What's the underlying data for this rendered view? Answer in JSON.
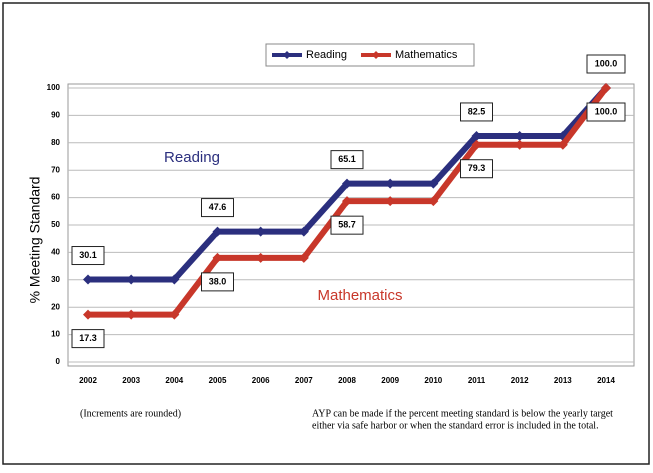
{
  "chart_data": {
    "type": "line",
    "y_label": "% Meeting Standard",
    "categories": [
      "2002",
      "2003",
      "2004",
      "2005",
      "2006",
      "2007",
      "2008",
      "2009",
      "2010",
      "2011",
      "2012",
      "2013",
      "2014"
    ],
    "series": [
      {
        "name": "Reading",
        "color": "#2b2f7e",
        "values": [
          30.1,
          30.1,
          30.1,
          47.6,
          47.6,
          47.6,
          65.1,
          65.1,
          65.1,
          82.5,
          82.5,
          82.5,
          100
        ],
        "value_labels": [
          "30.1",
          null,
          null,
          "47.6",
          null,
          null,
          "65.1",
          null,
          null,
          "82.5",
          null,
          null,
          "100.0"
        ]
      },
      {
        "name": "Mathematics",
        "color": "#c8372a",
        "values": [
          17.3,
          17.3,
          17.3,
          38,
          38,
          38,
          58.7,
          58.7,
          58.7,
          79.3,
          79.3,
          79.3,
          100
        ],
        "value_labels": [
          "17.3",
          null,
          null,
          "38.0",
          null,
          null,
          "58.7",
          null,
          null,
          "79.3",
          null,
          null,
          "100.0"
        ]
      }
    ],
    "ylim": [
      0,
      100
    ],
    "yticks": [
      0,
      10,
      20,
      30,
      40,
      50,
      60,
      70,
      80,
      90,
      100
    ],
    "grid": true,
    "legend": "top",
    "annotations": [
      "Reading",
      "Mathematics",
      "(Increments are rounded)",
      "AYP can be made if the percent meeting standard is below the yearly target",
      "either via safe harbor or when the standard error is included in the total."
    ]
  }
}
